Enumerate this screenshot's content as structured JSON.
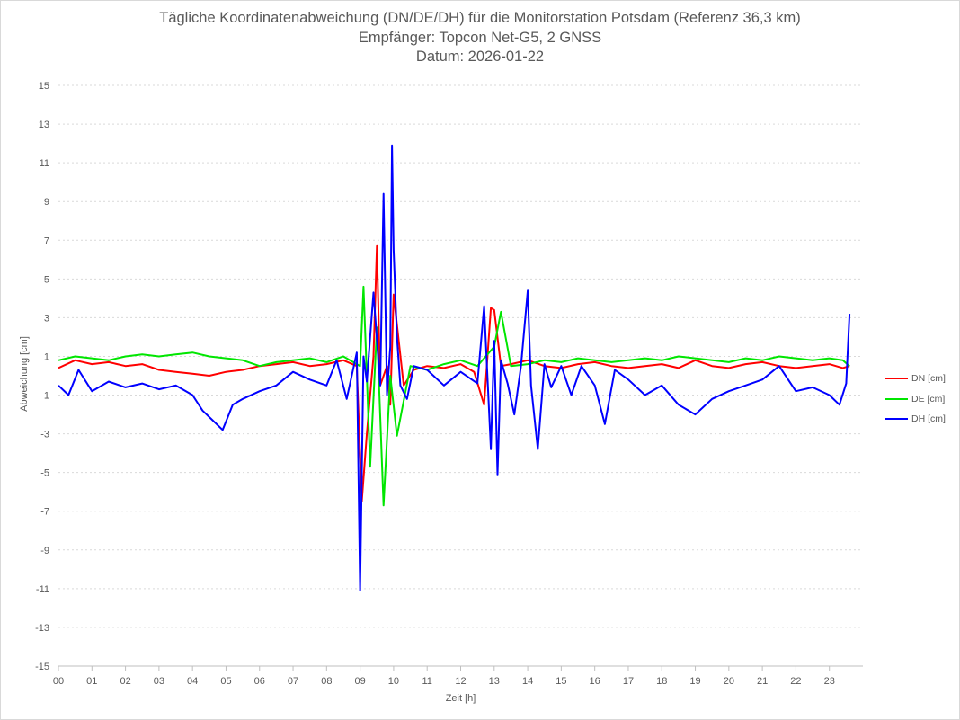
{
  "chart_data": {
    "type": "line",
    "title": "Tägliche Koordinatenabweichung (DN/DE/DH) für die Monitorstation Potsdam (Referenz 36,3 km)",
    "subtitle": "Empfänger: Topcon Net-G5, 2 GNSS",
    "date_line": "Datum: 2026-01-22",
    "xlabel": "Zeit [h]",
    "ylabel": "Abweichung [cm]",
    "xlim": [
      0,
      24
    ],
    "ylim": [
      -15,
      15
    ],
    "x_ticks": [
      "00",
      "01",
      "02",
      "03",
      "04",
      "05",
      "06",
      "07",
      "08",
      "09",
      "10",
      "11",
      "12",
      "13",
      "14",
      "15",
      "16",
      "17",
      "18",
      "19",
      "20",
      "21",
      "22",
      "23"
    ],
    "y_ticks": [
      15,
      13,
      11,
      9,
      7,
      5,
      3,
      1,
      -1,
      -3,
      -5,
      -7,
      -9,
      -11,
      -13,
      -15
    ],
    "grid": true,
    "legend_position": "right",
    "series": [
      {
        "name": "DN [cm]",
        "color": "#ff0000",
        "x": [
          0.0,
          0.5,
          1.0,
          1.5,
          2.0,
          2.5,
          3.0,
          3.5,
          4.0,
          4.5,
          5.0,
          5.5,
          6.0,
          6.5,
          7.0,
          7.5,
          8.0,
          8.5,
          8.9,
          9.05,
          9.2,
          9.4,
          9.5,
          9.6,
          9.8,
          9.9,
          10.0,
          10.3,
          10.6,
          11.0,
          11.5,
          12.0,
          12.4,
          12.7,
          12.9,
          13.0,
          13.2,
          13.5,
          14.0,
          14.5,
          15.0,
          15.5,
          16.0,
          16.5,
          17.0,
          17.5,
          18.0,
          18.5,
          19.0,
          19.5,
          20.0,
          20.5,
          21.0,
          21.5,
          22.0,
          22.5,
          23.0,
          23.4,
          23.6
        ],
        "values": [
          0.4,
          0.8,
          0.6,
          0.7,
          0.5,
          0.6,
          0.3,
          0.2,
          0.1,
          0.0,
          0.2,
          0.3,
          0.5,
          0.6,
          0.7,
          0.5,
          0.6,
          0.8,
          0.5,
          -6.5,
          -3.0,
          1.0,
          6.7,
          -0.5,
          0.5,
          -1.5,
          4.2,
          -0.5,
          0.3,
          0.5,
          0.4,
          0.6,
          0.2,
          -1.5,
          3.5,
          3.4,
          0.5,
          0.6,
          0.8,
          0.5,
          0.4,
          0.6,
          0.7,
          0.5,
          0.4,
          0.5,
          0.6,
          0.4,
          0.8,
          0.5,
          0.4,
          0.6,
          0.7,
          0.5,
          0.4,
          0.5,
          0.6,
          0.4,
          0.5
        ]
      },
      {
        "name": "DE [cm]",
        "color": "#00e600",
        "x": [
          0.0,
          0.5,
          1.0,
          1.5,
          2.0,
          2.5,
          3.0,
          3.5,
          4.0,
          4.5,
          5.0,
          5.5,
          6.0,
          6.5,
          7.0,
          7.5,
          8.0,
          8.5,
          9.0,
          9.1,
          9.3,
          9.5,
          9.7,
          9.9,
          10.1,
          10.5,
          11.0,
          11.5,
          12.0,
          12.5,
          13.0,
          13.2,
          13.5,
          14.0,
          14.5,
          15.0,
          15.5,
          16.0,
          16.5,
          17.0,
          17.5,
          18.0,
          18.5,
          19.0,
          19.5,
          20.0,
          20.5,
          21.0,
          21.5,
          22.0,
          22.5,
          23.0,
          23.4,
          23.6
        ],
        "values": [
          0.8,
          1.0,
          0.9,
          0.8,
          1.0,
          1.1,
          1.0,
          1.1,
          1.2,
          1.0,
          0.9,
          0.8,
          0.5,
          0.7,
          0.8,
          0.9,
          0.7,
          1.0,
          0.5,
          4.6,
          -4.7,
          2.5,
          -6.7,
          0.0,
          -3.1,
          0.5,
          0.3,
          0.6,
          0.8,
          0.5,
          1.5,
          3.3,
          0.5,
          0.6,
          0.8,
          0.7,
          0.9,
          0.8,
          0.7,
          0.8,
          0.9,
          0.8,
          1.0,
          0.9,
          0.8,
          0.7,
          0.9,
          0.8,
          1.0,
          0.9,
          0.8,
          0.9,
          0.8,
          0.5
        ]
      },
      {
        "name": "DH [cm]",
        "color": "#0000ff",
        "x": [
          0.0,
          0.3,
          0.6,
          1.0,
          1.5,
          2.0,
          2.5,
          3.0,
          3.5,
          4.0,
          4.3,
          4.6,
          4.9,
          5.2,
          5.5,
          6.0,
          6.5,
          7.0,
          7.5,
          8.0,
          8.3,
          8.6,
          8.9,
          9.0,
          9.1,
          9.2,
          9.4,
          9.6,
          9.7,
          9.8,
          9.9,
          9.95,
          10.0,
          10.1,
          10.2,
          10.4,
          10.6,
          11.0,
          11.5,
          12.0,
          12.5,
          12.7,
          12.9,
          13.0,
          13.1,
          13.2,
          13.4,
          13.6,
          13.8,
          14.0,
          14.1,
          14.3,
          14.5,
          14.7,
          15.0,
          15.3,
          15.6,
          16.0,
          16.3,
          16.6,
          17.0,
          17.5,
          18.0,
          18.5,
          19.0,
          19.5,
          20.0,
          20.5,
          21.0,
          21.5,
          22.0,
          22.5,
          23.0,
          23.3,
          23.5,
          23.6
        ],
        "values": [
          -0.5,
          -1.0,
          0.3,
          -0.8,
          -0.3,
          -0.6,
          -0.4,
          -0.7,
          -0.5,
          -1.0,
          -1.8,
          -2.3,
          -2.8,
          -1.5,
          -1.2,
          -0.8,
          -0.5,
          0.2,
          -0.2,
          -0.5,
          0.8,
          -1.2,
          1.2,
          -11.1,
          1.0,
          -0.3,
          4.3,
          -0.5,
          9.4,
          -1.0,
          1.5,
          11.9,
          6.5,
          2.0,
          -0.5,
          -1.2,
          0.5,
          0.3,
          -0.5,
          0.2,
          -0.4,
          3.6,
          -3.8,
          1.8,
          -5.1,
          0.8,
          -0.4,
          -2.0,
          0.5,
          4.4,
          -0.5,
          -3.8,
          0.6,
          -0.6,
          0.5,
          -1.0,
          0.5,
          -0.5,
          -2.5,
          0.3,
          -0.2,
          -1.0,
          -0.5,
          -1.5,
          -2.0,
          -1.2,
          -0.8,
          -0.5,
          -0.2,
          0.5,
          -0.8,
          -0.6,
          -1.0,
          -1.5,
          -0.4,
          3.2
        ]
      }
    ]
  }
}
